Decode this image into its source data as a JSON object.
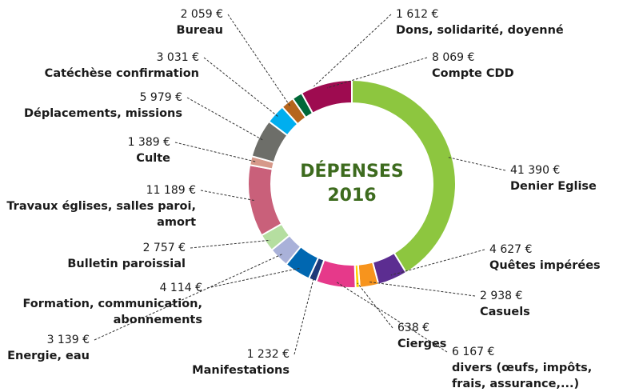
{
  "chart_data": {
    "type": "donut",
    "title": "DÉPENSES 2016",
    "categories": [
      "Denier Eglise",
      "Quêtes impérées",
      "Casuels",
      "Cierges",
      "divers (œufs, impôts, frais, assurance,...)",
      "Manifestations",
      "Formation, communication, abonnements",
      "Energie, eau",
      "Bulletin paroissial",
      "Travaux églises, salles paroi, amort",
      "Culte",
      "Déplacements, missions",
      "Catéchèse confirmation",
      "Bureau",
      "Dons, solidarité, doyenné",
      "Compte CDD"
    ],
    "values": [
      41390,
      4627,
      2938,
      638,
      6167,
      1232,
      4114,
      3139,
      2757,
      11189,
      1389,
      5979,
      3031,
      2059,
      1612,
      8069
    ],
    "value_labels": [
      "41 390 €",
      "4 627 €",
      "2 938 €",
      "638 €",
      "6 167 €",
      "1 232 €",
      "4 114 €",
      "3 139 €",
      "2 757 €",
      "11 189 €",
      "1 389 €",
      "5 979 €",
      "3 031 €",
      "2 059 €",
      "1 612 €",
      "8 069 €"
    ],
    "colors": [
      "#8dc63f",
      "#5c2d91",
      "#f7941d",
      "#ffd200",
      "#e6398a",
      "#1f3a7a",
      "#0067b1",
      "#a9b1d9",
      "#b5dea0",
      "#c9607a",
      "#d6998a",
      "#6d6e69",
      "#00aeef",
      "#b5651d",
      "#006838",
      "#9e0b50"
    ]
  }
}
